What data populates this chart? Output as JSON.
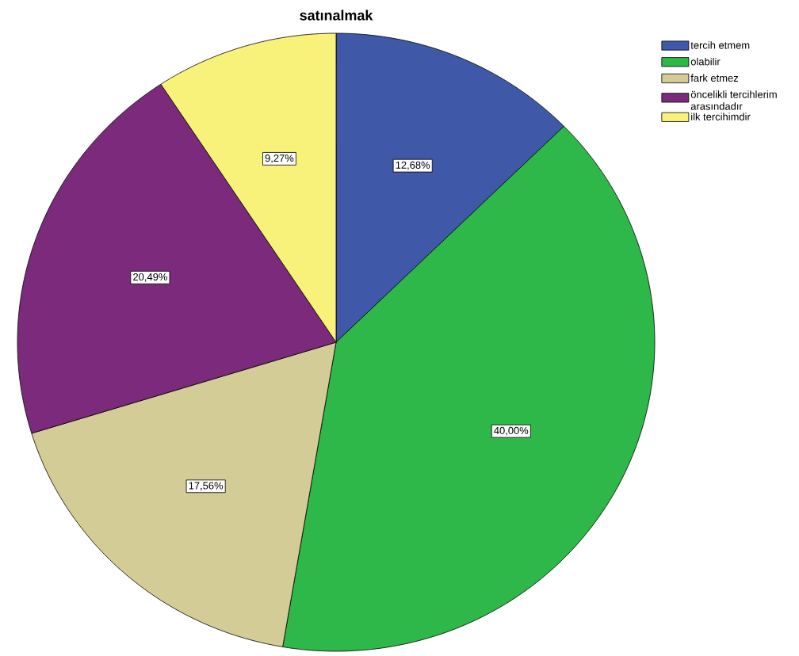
{
  "chart_data": {
    "type": "pie",
    "title": "satınalmak",
    "categories": [
      "tercih etmem",
      "olabilir",
      "fark etmez",
      "öncelikli tercihlerim arasındadır",
      "ilk tercihimdir"
    ],
    "values": [
      12.68,
      40.0,
      17.56,
      20.49,
      9.27
    ],
    "colors": [
      "#3f58a8",
      "#2eb84a",
      "#d3cc97",
      "#7b2a7c",
      "#f8f27a"
    ],
    "value_labels": [
      "12,68%",
      "40,00%",
      "17,56%",
      "20,49%",
      "9,27%"
    ],
    "legend": "top right"
  }
}
